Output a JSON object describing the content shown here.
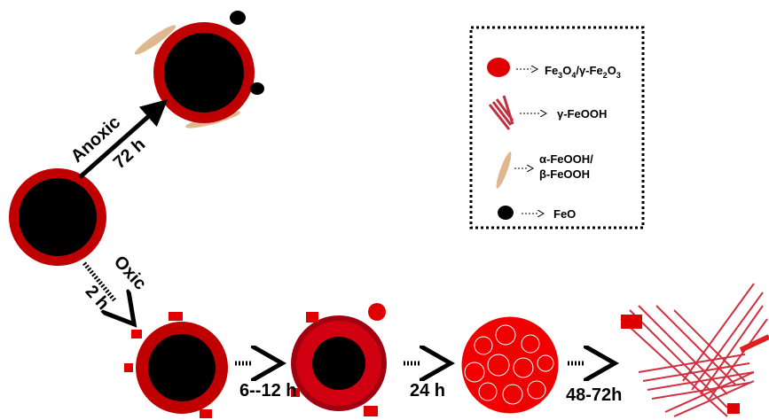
{
  "arrows": {
    "anoxic": {
      "label": "Anoxic",
      "time": "72 h"
    },
    "oxic": {
      "label": "Oxic",
      "time": "2 h"
    }
  },
  "steps": [
    "6--12 h",
    "24 h",
    "48-72h"
  ],
  "legend": [
    {
      "label_parts": [
        "Fe",
        "3",
        "O",
        "4",
        "/γ-Fe",
        "2",
        "O",
        "3"
      ]
    },
    {
      "label_parts": [
        "γ-FeOOH"
      ]
    },
    {
      "lines": [
        "α-FeOOH/",
        "β-FeOOH"
      ]
    },
    {
      "label_parts": [
        "FeO"
      ]
    }
  ]
}
